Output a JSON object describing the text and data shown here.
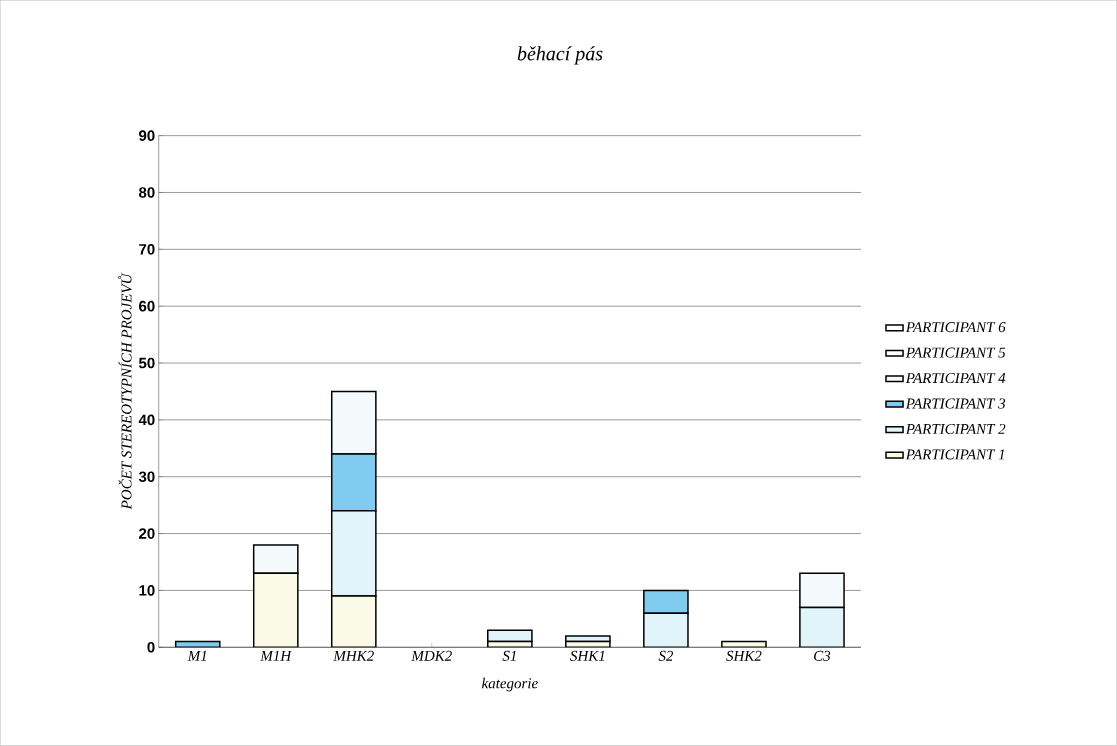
{
  "chart_data": {
    "type": "bar",
    "stacked": true,
    "title": "běhací pás",
    "xlabel": "kategorie",
    "ylabel": "POČET STEREOTYPNÍCH PROJEVŮ",
    "categories": [
      "M1",
      "M1H",
      "MHK2",
      "MDK2",
      "S1",
      "SHK1",
      "S2",
      "SHK2",
      "C3"
    ],
    "series": [
      {
        "name": "PARTICIPANT 1",
        "color": "#fafae6",
        "values": [
          0,
          13,
          9,
          0,
          1,
          1,
          0,
          1,
          0
        ]
      },
      {
        "name": "PARTICIPANT 2",
        "color": "#e0f4fa",
        "values": [
          0,
          0,
          15,
          0,
          2,
          1,
          6,
          0,
          7
        ]
      },
      {
        "name": "PARTICIPANT 3",
        "color": "#80ccf0",
        "values": [
          1,
          0,
          10,
          0,
          0,
          0,
          4,
          0,
          0
        ]
      },
      {
        "name": "PARTICIPANT 4",
        "color": "#f4fafc",
        "values": [
          0,
          5,
          11,
          0,
          0,
          0,
          0,
          0,
          6
        ]
      },
      {
        "name": "PARTICIPANT 5",
        "color": "#ffffff",
        "values": [
          0,
          0,
          0,
          0,
          0,
          0,
          0,
          0,
          0
        ]
      },
      {
        "name": "PARTICIPANT 6",
        "color": "#ffffff",
        "values": [
          0,
          0,
          0,
          0,
          0,
          0,
          0,
          0,
          0
        ]
      }
    ],
    "ylim": [
      0,
      90
    ],
    "yticks": [
      0,
      10,
      20,
      30,
      40,
      50,
      60,
      70,
      80,
      90
    ],
    "grid": "y",
    "legend": "right"
  }
}
